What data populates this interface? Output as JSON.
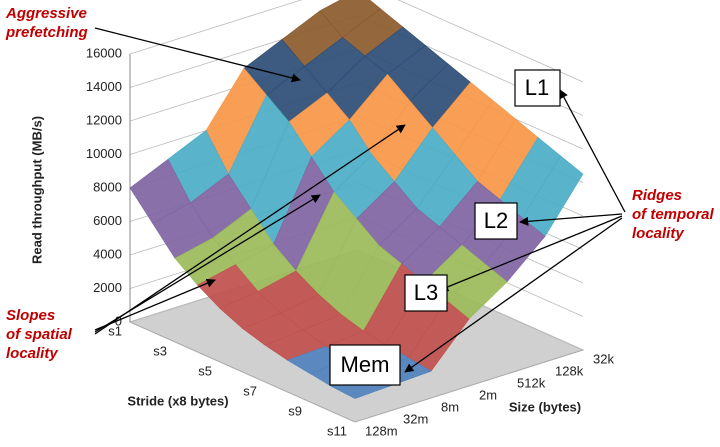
{
  "chart_data": {
    "type": "surface",
    "z_label": "Read throughput (MB/s)",
    "y_label": "Stride (x8 bytes)",
    "x_label": "Size (bytes)",
    "x_categories": [
      "128m",
      "32m",
      "8m",
      "2m",
      "512k",
      "128k",
      "32k"
    ],
    "y_categories": [
      "s1",
      null,
      "s3",
      null,
      "s5",
      null,
      "s7",
      null,
      "s9",
      null,
      "s11"
    ],
    "values": [
      [
        8000,
        9000,
        10000,
        13000,
        14000,
        15000,
        15500
      ],
      [
        6500,
        7000,
        8000,
        12000,
        13000,
        14000,
        15000
      ],
      [
        5000,
        5500,
        6500,
        11000,
        12000,
        13500,
        14500
      ],
      [
        4000,
        4500,
        5000,
        9500,
        11000,
        13000,
        14000
      ],
      [
        3200,
        3500,
        4000,
        8000,
        9500,
        12000,
        13500
      ],
      [
        2600,
        2800,
        3200,
        7000,
        8500,
        11000,
        13000
      ],
      [
        2200,
        2400,
        2600,
        6000,
        7500,
        10000,
        12500
      ],
      [
        1900,
        2000,
        2200,
        5500,
        7000,
        9000,
        12000
      ],
      [
        1700,
        1800,
        2000,
        5000,
        6500,
        8500,
        11500
      ],
      [
        1500,
        1600,
        1800,
        4500,
        6000,
        8000,
        11000
      ],
      [
        1400,
        1500,
        1600,
        4000,
        5500,
        7500,
        10500
      ]
    ],
    "zlim": [
      0,
      16000
    ],
    "zticks": [
      0,
      2000,
      4000,
      6000,
      8000,
      10000,
      12000,
      14000,
      16000
    ],
    "colors": [
      "#4f81bd",
      "#c0504d",
      "#9bbb59",
      "#8064a2",
      "#4bacc6",
      "#f79646",
      "#2c4d75",
      "#8b5a2b"
    ],
    "annotations": {
      "prefetch": [
        "Aggressive",
        "prefetching"
      ],
      "slopes": [
        "Slopes",
        "of spatial",
        "locality"
      ],
      "ridges": [
        "Ridges",
        "of temporal",
        "locality"
      ],
      "levels": [
        "L1",
        "L2",
        "L3",
        "Mem"
      ]
    }
  }
}
